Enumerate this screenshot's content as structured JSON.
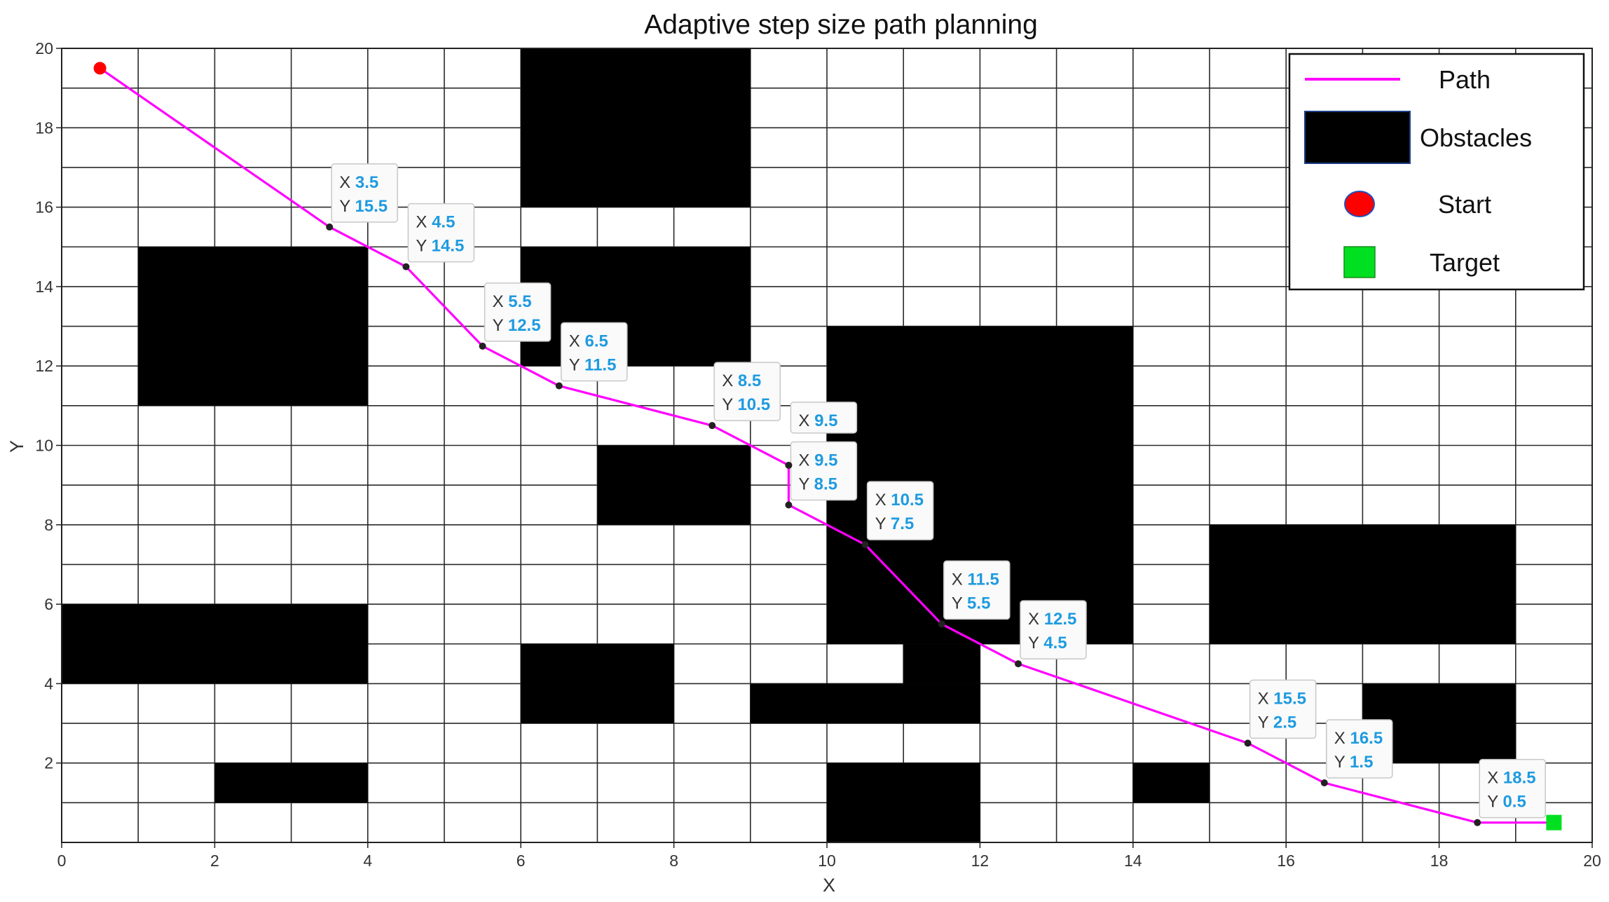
{
  "chart_data": {
    "type": "line",
    "title": "Adaptive step size path planning",
    "xlabel": "X",
    "ylabel": "Y",
    "xlim": [
      0,
      20
    ],
    "ylim": [
      0,
      20
    ],
    "xticks": [
      "0",
      "2",
      "4",
      "6",
      "8",
      "10",
      "12",
      "14",
      "16",
      "18",
      "20"
    ],
    "yticks": [
      "2",
      "4",
      "6",
      "8",
      "10",
      "12",
      "14",
      "16",
      "18",
      "20"
    ],
    "grid": true,
    "grid_step": 1,
    "legend": {
      "placement": "top-right",
      "entries": [
        {
          "label": "Path",
          "marker": "line",
          "color": "#ff00ff"
        },
        {
          "label": "Obstacles",
          "marker": "rect",
          "color": "#000000"
        },
        {
          "label": "Start",
          "marker": "circle",
          "color": "#ff0000"
        },
        {
          "label": "Target",
          "marker": "square",
          "color": "#00e020"
        }
      ]
    },
    "series": [
      {
        "name": "Path",
        "color": "#ff00ff",
        "points": [
          [
            0.5,
            19.5
          ],
          [
            3.5,
            15.5
          ],
          [
            4.5,
            14.5
          ],
          [
            5.5,
            12.5
          ],
          [
            6.5,
            11.5
          ],
          [
            8.5,
            10.5
          ],
          [
            9.5,
            9.5
          ],
          [
            9.5,
            8.5
          ],
          [
            10.5,
            7.5
          ],
          [
            11.5,
            5.5
          ],
          [
            12.5,
            4.5
          ],
          [
            15.5,
            2.5
          ],
          [
            16.5,
            1.5
          ],
          [
            18.5,
            0.5
          ],
          [
            19.5,
            0.5
          ]
        ]
      }
    ],
    "start": {
      "x": 0.5,
      "y": 19.5,
      "color": "#ff0000"
    },
    "target": {
      "x": 19.5,
      "y": 0.5,
      "color": "#00e020"
    },
    "obstacles": [
      {
        "x0": 6,
        "y0": 16,
        "x1": 9,
        "y1": 20
      },
      {
        "x0": 1,
        "y0": 11,
        "x1": 4,
        "y1": 15
      },
      {
        "x0": 6,
        "y0": 12,
        "x1": 9,
        "y1": 15
      },
      {
        "x0": 10,
        "y0": 5,
        "x1": 14,
        "y1": 13
      },
      {
        "x0": 7,
        "y0": 8,
        "x1": 9,
        "y1": 10
      },
      {
        "x0": 0,
        "y0": 4,
        "x1": 4,
        "y1": 6
      },
      {
        "x0": 6,
        "y0": 3,
        "x1": 8,
        "y1": 5
      },
      {
        "x0": 9,
        "y0": 3,
        "x1": 12,
        "y1": 4
      },
      {
        "x0": 11,
        "y0": 4,
        "x1": 12,
        "y1": 5
      },
      {
        "x0": 2,
        "y0": 1,
        "x1": 4,
        "y1": 2
      },
      {
        "x0": 10,
        "y0": 0,
        "x1": 12,
        "y1": 2
      },
      {
        "x0": 14,
        "y0": 1,
        "x1": 15,
        "y1": 2
      },
      {
        "x0": 15,
        "y0": 5,
        "x1": 19,
        "y1": 8
      },
      {
        "x0": 17,
        "y0": 2,
        "x1": 19,
        "y1": 4
      }
    ],
    "datatips": [
      {
        "x": 3.5,
        "y": 15.5,
        "x_text": "3.5",
        "y_text": "15.5",
        "show_y": true
      },
      {
        "x": 4.5,
        "y": 14.5,
        "x_text": "4.5",
        "y_text": "14.5",
        "show_y": true
      },
      {
        "x": 5.5,
        "y": 12.5,
        "x_text": "5.5",
        "y_text": "12.5",
        "show_y": true
      },
      {
        "x": 6.5,
        "y": 11.5,
        "x_text": "6.5",
        "y_text": "11.5",
        "show_y": true
      },
      {
        "x": 8.5,
        "y": 10.5,
        "x_text": "8.5",
        "y_text": "10.5",
        "show_y": true
      },
      {
        "x": 9.5,
        "y": 9.5,
        "x_text": "9.5",
        "y_text": "",
        "show_y": false
      },
      {
        "x": 9.5,
        "y": 8.5,
        "x_text": "9.5",
        "y_text": "8.5",
        "show_y": true
      },
      {
        "x": 10.5,
        "y": 7.5,
        "x_text": "10.5",
        "y_text": "7.5",
        "show_y": true
      },
      {
        "x": 11.5,
        "y": 5.5,
        "x_text": "11.5",
        "y_text": "5.5",
        "show_y": true
      },
      {
        "x": 12.5,
        "y": 4.5,
        "x_text": "12.5",
        "y_text": "4.5",
        "show_y": true
      },
      {
        "x": 15.5,
        "y": 2.5,
        "x_text": "15.5",
        "y_text": "2.5",
        "show_y": true
      },
      {
        "x": 16.5,
        "y": 1.5,
        "x_text": "16.5",
        "y_text": "1.5",
        "show_y": true
      },
      {
        "x": 18.5,
        "y": 0.5,
        "x_text": "18.5",
        "y_text": "0.5",
        "show_y": true
      }
    ],
    "datatip_keys": {
      "x": "X",
      "y": "Y"
    }
  }
}
